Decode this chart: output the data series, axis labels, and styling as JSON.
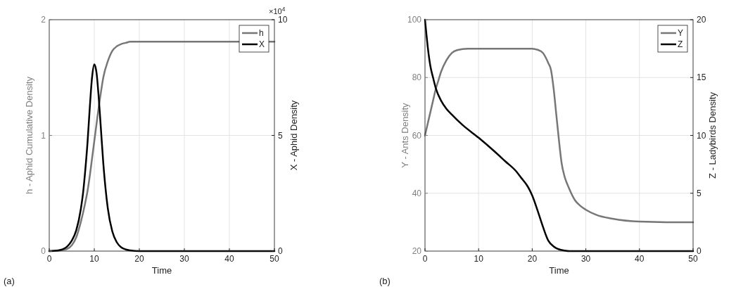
{
  "chart_data": [
    {
      "type": "line",
      "xlabel": "Time",
      "ylabel": "h - Aphid Cumulative Density",
      "y2label": "X - Aphid Density",
      "xlim": [
        0,
        50
      ],
      "xticks": [
        0,
        10,
        20,
        30,
        40,
        50
      ],
      "ylim": [
        0,
        2
      ],
      "yticks": [
        0,
        1,
        2
      ],
      "y2lim": [
        0,
        10
      ],
      "y2ticks": [
        0,
        5,
        10
      ],
      "grid": true,
      "legend": "top right",
      "annotations": [
        "×10$^{4}$",
        "(a)"
      ],
      "series": [
        {
          "name": "h",
          "color": "#777777",
          "x": [
            0,
            2,
            4,
            5,
            6,
            7,
            8,
            8.5,
            9,
            9.5,
            10,
            10.5,
            11,
            11.5,
            12,
            13,
            14,
            15,
            16,
            17,
            18,
            20,
            30,
            40,
            50
          ],
          "values": [
            0,
            0.005,
            0.02,
            0.05,
            0.12,
            0.25,
            0.42,
            0.52,
            0.65,
            0.8,
            0.95,
            1.1,
            1.25,
            1.38,
            1.5,
            1.64,
            1.73,
            1.77,
            1.79,
            1.8,
            1.81,
            1.81,
            1.81,
            1.81,
            1.81
          ]
        },
        {
          "name": "X",
          "color": "#000000",
          "axis": "y2",
          "x": [
            0,
            2,
            3,
            4,
            5,
            6,
            7,
            7.5,
            8,
            8.5,
            9,
            9.5,
            10,
            10.5,
            11,
            11.5,
            12,
            12.5,
            13,
            14,
            15,
            16,
            17,
            18,
            20,
            25,
            50
          ],
          "values": [
            0,
            0.03,
            0.08,
            0.2,
            0.45,
            0.9,
            1.8,
            2.5,
            3.5,
            4.7,
            6.2,
            7.5,
            8.07,
            7.7,
            6.6,
            5.2,
            3.8,
            2.7,
            1.85,
            0.85,
            0.38,
            0.16,
            0.07,
            0.03,
            0,
            0,
            0
          ]
        }
      ]
    },
    {
      "type": "line",
      "xlabel": "Time",
      "ylabel": "Y - Ants Density",
      "y2label": "Z - Ladybirds Density",
      "xlim": [
        0,
        50
      ],
      "xticks": [
        0,
        10,
        20,
        30,
        40,
        50
      ],
      "ylim": [
        20,
        100
      ],
      "yticks": [
        20,
        40,
        60,
        80,
        100
      ],
      "y2lim": [
        0,
        20
      ],
      "y2ticks": [
        0,
        5,
        10,
        15,
        20
      ],
      "grid": true,
      "legend": "top right",
      "annotations": [
        "(b)"
      ],
      "series": [
        {
          "name": "Y",
          "color": "#777777",
          "x": [
            0,
            0.5,
            1,
            1.5,
            2,
            2.5,
            3,
            4,
            5,
            6,
            8,
            12,
            16,
            20,
            21,
            22,
            22.5,
            23,
            23.5,
            24,
            24.5,
            25,
            25.5,
            26,
            26.8,
            28,
            29,
            30,
            32,
            35,
            40,
            45,
            50
          ],
          "values": [
            60,
            64,
            68,
            72,
            76,
            79,
            82,
            86,
            88.5,
            89.5,
            90,
            90,
            90,
            90,
            89.6,
            88.5,
            87,
            85,
            82.6,
            76,
            67,
            58,
            50.2,
            46,
            42,
            37.5,
            35.6,
            34.3,
            32.5,
            31.2,
            30.2,
            30,
            30
          ]
        },
        {
          "name": "Z",
          "color": "#000000",
          "axis": "y2",
          "x": [
            0,
            0.25,
            0.5,
            1,
            1.5,
            2,
            3,
            4,
            5,
            7,
            10,
            13,
            15,
            17,
            18,
            19,
            19.5,
            20,
            21,
            22,
            23,
            24,
            25,
            26,
            27,
            30,
            50
          ],
          "values": [
            20,
            18.8,
            17.7,
            16,
            15,
            14.1,
            13,
            12.3,
            11.8,
            10.9,
            9.8,
            8.6,
            7.75,
            6.9,
            6.3,
            5.7,
            5.3,
            4.8,
            3.5,
            2.1,
            0.9,
            0.4,
            0.15,
            0.05,
            0,
            0,
            0
          ]
        }
      ]
    }
  ]
}
